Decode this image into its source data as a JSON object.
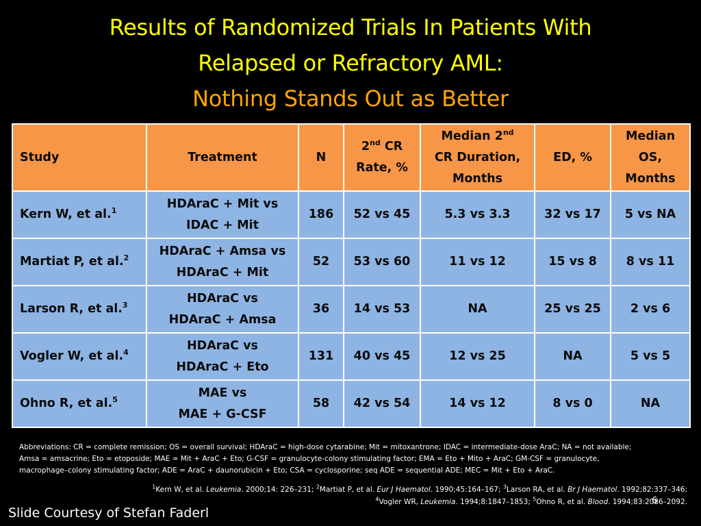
{
  "title": {
    "line1": "Results of Randomized Trials In Patients With",
    "line2": "Relapsed or Refractory AML:",
    "line3": "Nothing Stands Out as Better"
  },
  "colors": {
    "title": "#ffff00",
    "subtitle": "#ffa500",
    "header_bg": "#f79646",
    "row_bg": "#8eb4e3",
    "background": "#000000"
  },
  "table": {
    "headers": {
      "study": "Study",
      "treatment": "Treatment",
      "n": "N",
      "cr_rate": {
        "pre": "2",
        "sup": "nd",
        "post": " CR",
        "line2": "Rate, %"
      },
      "cr_duration": {
        "line1_pre": "Median 2",
        "line1_sup": "nd",
        "line2": "CR Duration,",
        "line3": "Months"
      },
      "ed": "ED, %",
      "os": {
        "line1": "Median",
        "line2": "OS,",
        "line3": "Months"
      }
    },
    "rows": [
      {
        "study": "Kern W, et al.",
        "ref": "1",
        "treatment_l1": "HDAraC + Mit vs",
        "treatment_l2": "IDAC + Mit",
        "n": "186",
        "cr": "52 vs 45",
        "duration": "5.3 vs 3.3",
        "ed": "32 vs 17",
        "os": "5 vs NA"
      },
      {
        "study": "Martiat P, et al.",
        "ref": "2",
        "treatment_l1": "HDAraC + Amsa vs",
        "treatment_l2": "HDAraC + Mit",
        "n": "52",
        "cr": "53 vs 60",
        "duration": "11 vs 12",
        "ed": "15 vs 8",
        "os": "8 vs 11"
      },
      {
        "study": "Larson R, et al.",
        "ref": "3",
        "treatment_l1": "HDAraC vs",
        "treatment_l2": "HDAraC + Amsa",
        "n": "36",
        "cr": "14 vs 53",
        "duration": "NA",
        "ed": "25 vs 25",
        "os": "2 vs 6"
      },
      {
        "study": "Vogler W, et al.",
        "ref": "4",
        "treatment_l1": "HDAraC vs",
        "treatment_l2": "HDAraC + Eto",
        "n": "131",
        "cr": "40 vs 45",
        "duration": "12 vs 25",
        "ed": "NA",
        "os": "5 vs 5"
      },
      {
        "study": "Ohno R, et al.",
        "ref": "5",
        "treatment_l1": "MAE vs",
        "treatment_l2": "MAE + G-CSF",
        "n": "58",
        "cr": "42 vs 54",
        "duration": "14 vs 12",
        "ed": "8 vs 0",
        "os": "NA"
      }
    ]
  },
  "abbreviations": {
    "line1": "Abbreviations: CR = complete remission; OS = overall survival; HDAraC = high-dose cytarabine; Mit = mitoxantrone; IDAC = intermediate-dose AraC; NA = not available;",
    "line2": "Amsa = amsacrine; Eto = etoposide; MAE = Mit + AraC + Eto; G-CSF = granulocyte-colony stimulating factor; EMA = Eto + Mito + AraC; GM-CSF = granulocyte,",
    "line3": "macrophage–colony stimulating factor; ADE = AraC + daunorubicin + Eto; CSA = cyclosporine; seq ADE = sequential ADE; MEC = Mit + Eto + AraC."
  },
  "references": {
    "r1": {
      "num": "1",
      "text": "Kern W, et al. ",
      "journal": "Leukemia",
      "cite": ". 2000;14: 226–231;  "
    },
    "r2": {
      "num": "2",
      "text": "Martiat P, et al. ",
      "journal": "Eur J Haematol",
      "cite": ". 1990;45:164–167; "
    },
    "r3": {
      "num": "3",
      "text": "Larson RA, et al. ",
      "journal": "Br J Haematol",
      "cite": ". 1992;82:337–346;"
    },
    "r4": {
      "num": "4",
      "text": "Vogler WR, ",
      "journal": "Leukemia",
      "cite": ". 1994;8:1847–1853;  "
    },
    "r5": {
      "num": "5",
      "text": "Ohno R, et al. ",
      "journal": "Blood",
      "cite": ". 1994;83:2086–2092."
    }
  },
  "courtesy": "Slide Courtesy of Stefan Faderl",
  "slide_number": "6"
}
